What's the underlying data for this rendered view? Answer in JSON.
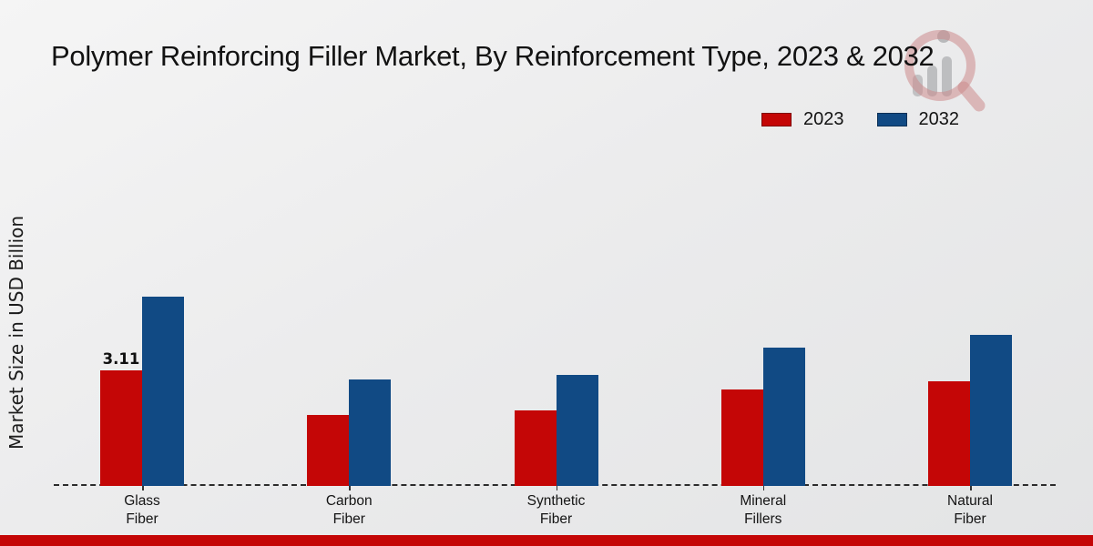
{
  "title": "Polymer Reinforcing Filler Market, By Reinforcement Type, 2023 & 2032",
  "y_axis_label": "Market Size in USD Billion",
  "colors": {
    "series_2023": "#c40606",
    "series_2032": "#114a84",
    "footer_bar": "#c40606",
    "baseline": "#2b2b2b",
    "background_light": "#f5f5f5",
    "background_dark": "#e3e4e5"
  },
  "legend": {
    "position": "top-right",
    "items": [
      {
        "label": "2023",
        "color": "#c40606"
      },
      {
        "label": "2032",
        "color": "#114a84"
      }
    ]
  },
  "watermark": {
    "icon": "magnifier-bar-chart-logo"
  },
  "chart_data": {
    "type": "bar",
    "title": "Polymer Reinforcing Filler Market, By Reinforcement Type, 2023 & 2032",
    "xlabel": "",
    "ylabel": "Market Size in USD Billion",
    "categories": [
      "Glass Fiber",
      "Carbon Fiber",
      "Synthetic Fiber",
      "Mineral Fillers",
      "Natural Fiber"
    ],
    "category_lines": [
      [
        "Glass",
        "Fiber"
      ],
      [
        "Carbon",
        "Fiber"
      ],
      [
        "Synthetic",
        "Fiber"
      ],
      [
        "Mineral",
        "Fillers"
      ],
      [
        "Natural",
        "Fiber"
      ]
    ],
    "series": [
      {
        "name": "2023",
        "color": "#c40606",
        "values": [
          3.11,
          1.9,
          2.02,
          2.59,
          2.81
        ]
      },
      {
        "name": "2032",
        "color": "#114a84",
        "values": [
          5.1,
          2.86,
          2.99,
          3.72,
          4.06
        ]
      }
    ],
    "data_labels": [
      {
        "series": "2023",
        "category": "Glass Fiber",
        "text": "3.11"
      }
    ],
    "ylim": [
      0,
      5.6
    ],
    "grid": false,
    "baseline_style": "dashed",
    "legend_position": "top-right"
  }
}
